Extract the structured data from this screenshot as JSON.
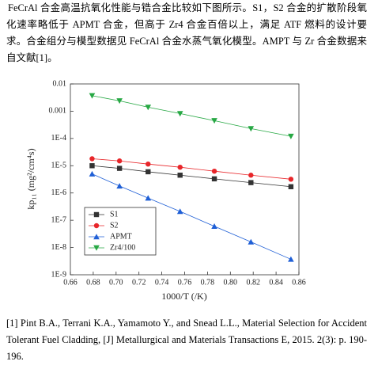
{
  "paragraph": "FeCrAl 合金高温抗氧化性能与锆合金比较如下图所示。S1，S2 合金的扩散阶段氧化速率略低于 APMT 合金，但高于 Zr4 合金百倍以上，满足 ATF 燃料的设计要求。合金组分与模型数据见 FeCrAl 合金水蒸气氧化模型。AMPT 与 Zr 合金数据来自文献[1]。",
  "chart_data": {
    "type": "line",
    "x_label": "1000/T (/K)",
    "y_label": "kp₁₁ (mg²/cm⁴s)",
    "x": [
      0.679,
      0.703,
      0.728,
      0.756,
      0.786,
      0.818,
      0.853
    ],
    "series": [
      {
        "name": "S1",
        "color": "#333333",
        "marker": "square",
        "values": [
          1e-05,
          8e-06,
          6e-06,
          4.5e-06,
          3.3e-06,
          2.4e-06,
          1.7e-06
        ]
      },
      {
        "name": "S2",
        "color": "#e8262a",
        "marker": "circle",
        "values": [
          1.8e-05,
          1.5e-05,
          1.15e-05,
          8.8e-06,
          6.3e-06,
          4.5e-06,
          3.2e-06
        ]
      },
      {
        "name": "APMT",
        "color": "#1f5fd6",
        "marker": "triangle-up",
        "values": [
          5e-06,
          1.8e-06,
          6.5e-07,
          2.1e-07,
          6e-08,
          1.6e-08,
          3.7e-09
        ]
      },
      {
        "name": "Zr4/100",
        "color": "#27a844",
        "marker": "triangle-down",
        "values": [
          0.0037,
          0.0024,
          0.0014,
          0.00082,
          0.00045,
          0.00023,
          0.00012
        ]
      }
    ],
    "xlim": [
      0.66,
      0.86
    ],
    "xticks": [
      0.66,
      0.68,
      {
        "value": 0.7,
        "label": "0.70"
      },
      0.72,
      0.74,
      0.76,
      0.78,
      {
        "value": 0.8,
        "label": "0.80"
      },
      0.82,
      0.84,
      0.86
    ],
    "ylim": [
      1e-09,
      0.01
    ],
    "yticks": [
      {
        "value": 1e-09,
        "label": "1E-9"
      },
      {
        "value": 1e-08,
        "label": "1E-8"
      },
      {
        "value": 1e-07,
        "label": "1E-7"
      },
      {
        "value": 1e-06,
        "label": "1E-6"
      },
      {
        "value": 1e-05,
        "label": "1E-5"
      },
      {
        "value": 0.0001,
        "label": "1E-4"
      },
      0.001,
      0.01
    ],
    "y_scale": "log",
    "legend": "lower left"
  },
  "reference": "[1] Pint B.A., Terrani K.A., Yamamoto Y., and Snead L.L., Material Selection for Accident Tolerant Fuel Cladding, [J] Metallurgical and Materials Transactions E, 2015. 2(3): p. 190-196."
}
